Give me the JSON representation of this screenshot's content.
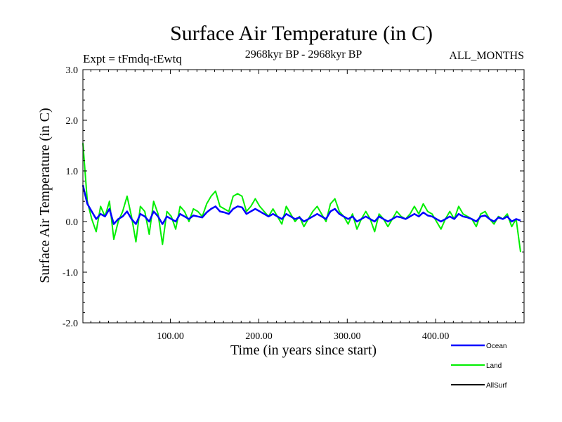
{
  "chart_data": {
    "type": "line",
    "title": "Surface Air Temperature (in C)",
    "subtitle_left": "Expt = tFmdq-tEwtq",
    "subtitle_center": "2968kyr BP - 2968kyr BP",
    "subtitle_right": "ALL_MONTHS",
    "xlabel": "Time (in years since start)",
    "ylabel": "Surface Air Temperature (in C)",
    "xlim": [
      1,
      500
    ],
    "ylim": [
      -2.0,
      3.0
    ],
    "x_ticks": [
      100,
      200,
      300,
      400
    ],
    "x_tick_labels": [
      "100.00",
      "200.00",
      "300.00",
      "400.00"
    ],
    "y_ticks": [
      -2.0,
      -1.0,
      0.0,
      1.0,
      2.0,
      3.0
    ],
    "y_tick_labels": [
      "-2.0",
      "-1.0",
      "0.0",
      "1.0",
      "2.0",
      "3.0"
    ],
    "legend_position": "bottom-right",
    "series": [
      {
        "name": "Ocean",
        "color": "#0000ff",
        "x_start": 1,
        "x_step": 5,
        "values": [
          0.72,
          0.35,
          0.2,
          0.05,
          0.15,
          0.1,
          0.25,
          -0.05,
          0.05,
          0.1,
          0.2,
          0.05,
          -0.05,
          0.15,
          0.1,
          0.0,
          0.2,
          0.1,
          -0.05,
          0.1,
          0.05,
          0.0,
          0.15,
          0.1,
          0.05,
          0.12,
          0.1,
          0.08,
          0.18,
          0.25,
          0.3,
          0.2,
          0.18,
          0.15,
          0.25,
          0.3,
          0.28,
          0.15,
          0.2,
          0.25,
          0.2,
          0.15,
          0.1,
          0.15,
          0.1,
          0.05,
          0.15,
          0.1,
          0.05,
          0.08,
          0.0,
          0.05,
          0.1,
          0.15,
          0.1,
          0.05,
          0.2,
          0.25,
          0.15,
          0.1,
          0.05,
          0.1,
          0.0,
          0.05,
          0.1,
          0.05,
          0.0,
          0.1,
          0.05,
          0.0,
          0.05,
          0.1,
          0.08,
          0.05,
          0.1,
          0.15,
          0.1,
          0.18,
          0.12,
          0.1,
          0.05,
          0.0,
          0.05,
          0.1,
          0.05,
          0.15,
          0.1,
          0.08,
          0.05,
          0.0,
          0.1,
          0.12,
          0.05,
          0.0,
          0.08,
          0.05,
          0.1,
          0.0,
          0.05,
          0.02
        ]
      },
      {
        "name": "Land",
        "color": "#00ee00",
        "x_start": 1,
        "x_step": 5,
        "values": [
          1.55,
          0.4,
          0.05,
          -0.2,
          0.3,
          0.1,
          0.4,
          -0.35,
          0.0,
          0.2,
          0.5,
          0.1,
          -0.4,
          0.3,
          0.2,
          -0.25,
          0.4,
          0.15,
          -0.45,
          0.2,
          0.1,
          -0.15,
          0.3,
          0.2,
          0.0,
          0.25,
          0.2,
          0.1,
          0.35,
          0.5,
          0.6,
          0.3,
          0.25,
          0.2,
          0.5,
          0.55,
          0.5,
          0.2,
          0.3,
          0.45,
          0.3,
          0.2,
          0.1,
          0.25,
          0.1,
          -0.05,
          0.3,
          0.15,
          0.0,
          0.1,
          -0.1,
          0.05,
          0.2,
          0.3,
          0.15,
          0.0,
          0.35,
          0.45,
          0.2,
          0.1,
          -0.05,
          0.15,
          -0.15,
          0.05,
          0.2,
          0.05,
          -0.2,
          0.15,
          0.05,
          -0.1,
          0.05,
          0.2,
          0.1,
          0.05,
          0.15,
          0.3,
          0.15,
          0.35,
          0.2,
          0.15,
          0.0,
          -0.15,
          0.05,
          0.2,
          0.05,
          0.3,
          0.15,
          0.1,
          0.05,
          -0.1,
          0.15,
          0.2,
          0.05,
          -0.05,
          0.1,
          0.05,
          0.15,
          -0.1,
          0.05,
          -0.6
        ]
      },
      {
        "name": "AllSurf",
        "color": "#000000",
        "x_start": 1,
        "x_step": 5,
        "values": []
      }
    ]
  }
}
